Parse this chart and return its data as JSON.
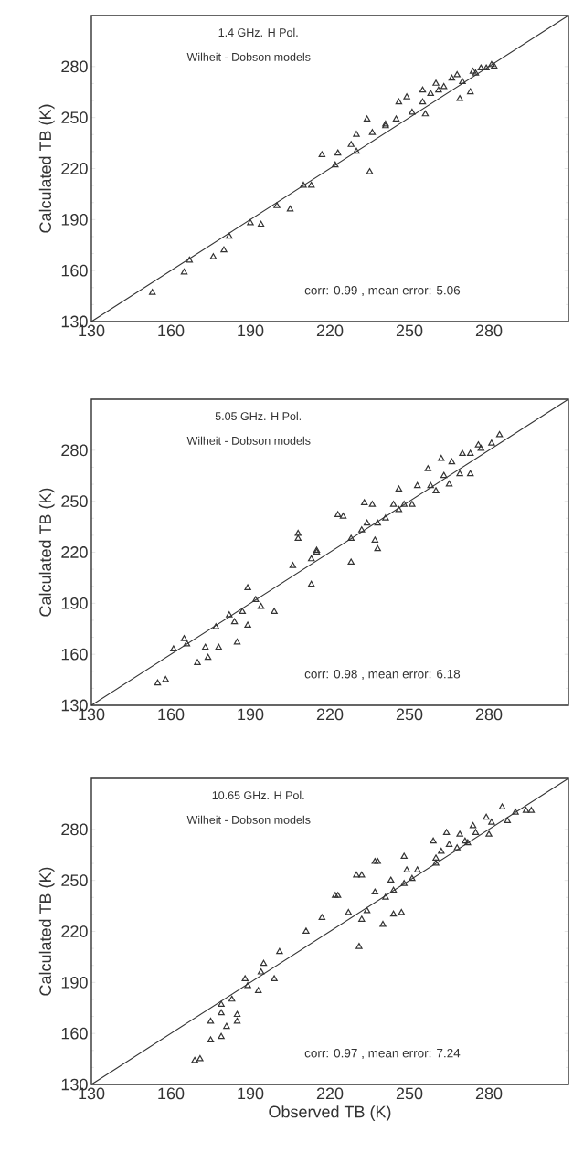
{
  "chart_data": [
    {
      "type": "scatter",
      "title": "1.4 GHz.    H Pol.",
      "subtitle": "Wilheit - Dobson models",
      "ylabel": "Calculated TB (K)",
      "annotations": [
        "corr: 0.99 , mean error:  5.06"
      ],
      "xlim": [
        130,
        310
      ],
      "ylim": [
        130,
        310
      ],
      "xticks": [
        130,
        160,
        190,
        220,
        250,
        280
      ],
      "yticks": [
        130,
        160,
        190,
        220,
        250,
        280
      ],
      "marker": "triangle",
      "series": [
        {
          "color": "#333333",
          "x": [
            153,
            165,
            167,
            176,
            180,
            182,
            190,
            194,
            200,
            205,
            210,
            213,
            217,
            222,
            223,
            228,
            230,
            230,
            234,
            235,
            236,
            241,
            241,
            245,
            246,
            249,
            251,
            255,
            255,
            256,
            258,
            260,
            261,
            263,
            266,
            268,
            269,
            270,
            273,
            274,
            275,
            277,
            279,
            281,
            282
          ],
          "values": [
            147,
            159,
            166,
            168,
            172,
            180,
            188,
            187,
            198,
            196,
            210,
            210,
            228,
            222,
            229,
            234,
            240,
            230,
            249,
            218,
            241,
            246,
            245,
            249,
            259,
            262,
            253,
            259,
            266,
            252,
            264,
            270,
            266,
            268,
            273,
            275,
            261,
            271,
            265,
            277,
            276,
            279,
            279,
            281,
            280
          ]
        },
        {
          "type": "line",
          "marker": "none",
          "color": "#333333",
          "x": [
            130,
            310
          ],
          "values": [
            130,
            310
          ]
        }
      ]
    },
    {
      "type": "scatter",
      "title": "5.05 GHz.    H Pol.",
      "subtitle": "Wilheit - Dobson models",
      "ylabel": "Calculated TB (K)",
      "annotations": [
        "corr: 0.98 , mean error:  6.18"
      ],
      "xlim": [
        130,
        310
      ],
      "ylim": [
        130,
        310
      ],
      "xticks": [
        130,
        160,
        190,
        220,
        250,
        280
      ],
      "yticks": [
        130,
        160,
        190,
        220,
        250,
        280
      ],
      "marker": "triangle",
      "series": [
        {
          "color": "#333333",
          "x": [
            155,
            158,
            161,
            165,
            166,
            170,
            173,
            174,
            177,
            178,
            182,
            184,
            185,
            187,
            189,
            189,
            192,
            194,
            199,
            206,
            208,
            208,
            213,
            213,
            215,
            215,
            223,
            225,
            228,
            228,
            232,
            233,
            234,
            236,
            237,
            238,
            238,
            241,
            244,
            246,
            246,
            248,
            251,
            253,
            257,
            258,
            260,
            262,
            263,
            265,
            266,
            269,
            270,
            273,
            273,
            276,
            277,
            281,
            284
          ],
          "values": [
            143,
            145,
            163,
            169,
            166,
            155,
            164,
            158,
            176,
            164,
            183,
            179,
            167,
            185,
            199,
            177,
            192,
            188,
            185,
            212,
            231,
            228,
            216,
            201,
            220,
            221,
            242,
            241,
            228,
            214,
            233,
            249,
            237,
            248,
            227,
            222,
            237,
            240,
            248,
            257,
            245,
            248,
            248,
            259,
            269,
            259,
            256,
            275,
            265,
            260,
            273,
            266,
            278,
            266,
            278,
            283,
            281,
            284,
            289
          ]
        },
        {
          "type": "line",
          "marker": "none",
          "color": "#333333",
          "x": [
            130,
            310
          ],
          "values": [
            130,
            310
          ]
        }
      ]
    },
    {
      "type": "scatter",
      "title": "10.65 GHz.    H Pol.",
      "subtitle": "Wilheit - Dobson models",
      "xlabel": "Observed TB (K)",
      "ylabel": "Calculated TB (K)",
      "annotations": [
        "corr: 0.97 , mean error:  7.24"
      ],
      "xlim": [
        130,
        310
      ],
      "ylim": [
        130,
        310
      ],
      "xticks": [
        130,
        160,
        190,
        220,
        250,
        280
      ],
      "yticks": [
        130,
        160,
        190,
        220,
        250,
        280
      ],
      "marker": "triangle",
      "series": [
        {
          "color": "#333333",
          "x": [
            169,
            171,
            175,
            175,
            179,
            179,
            179,
            181,
            183,
            185,
            185,
            188,
            189,
            193,
            194,
            195,
            199,
            201,
            211,
            217,
            222,
            223,
            227,
            230,
            231,
            232,
            232,
            234,
            237,
            238,
            237,
            241,
            240,
            243,
            244,
            244,
            247,
            248,
            248,
            249,
            251,
            253,
            259,
            260,
            260,
            262,
            264,
            265,
            268,
            269,
            271,
            272,
            274,
            275,
            279,
            280,
            281,
            285,
            287,
            290,
            294,
            296
          ],
          "values": [
            144,
            145,
            167,
            156,
            158,
            177,
            172,
            164,
            180,
            171,
            167,
            192,
            188,
            185,
            196,
            201,
            192,
            208,
            220,
            228,
            241,
            241,
            231,
            253,
            211,
            227,
            253,
            232,
            261,
            261,
            243,
            240,
            224,
            250,
            230,
            244,
            231,
            264,
            248,
            256,
            251,
            256,
            273,
            263,
            260,
            267,
            278,
            271,
            269,
            277,
            273,
            272,
            282,
            278,
            287,
            277,
            284,
            293,
            285,
            290,
            291,
            291
          ]
        },
        {
          "type": "line",
          "marker": "none",
          "color": "#333333",
          "x": [
            130,
            310
          ],
          "values": [
            130,
            310
          ]
        }
      ]
    }
  ]
}
